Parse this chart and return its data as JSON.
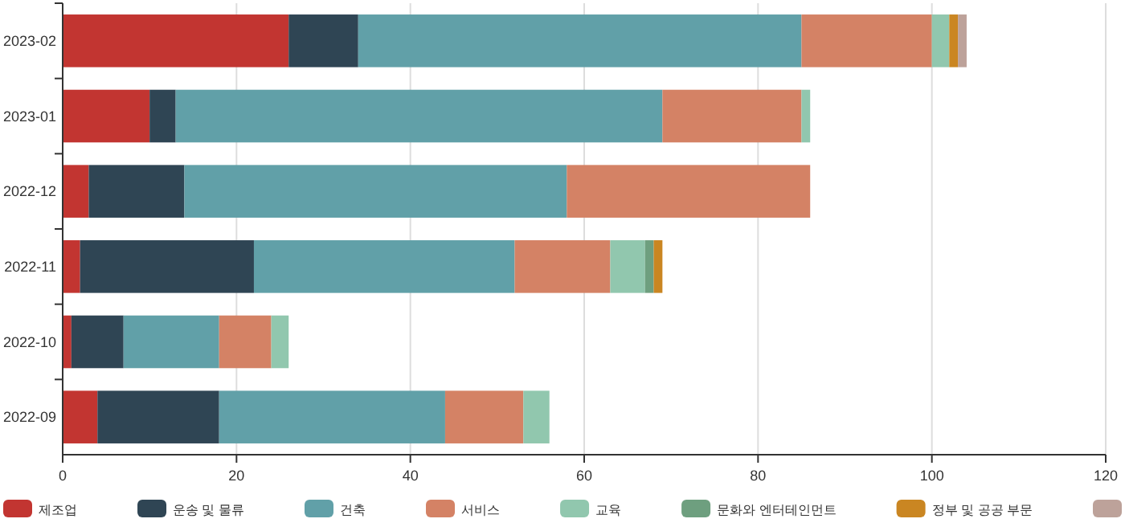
{
  "chart_data": {
    "type": "bar",
    "orientation": "horizontal",
    "stacked": true,
    "categories": [
      "2023-02",
      "2023-01",
      "2022-12",
      "2022-11",
      "2022-10",
      "2022-09"
    ],
    "series": [
      {
        "name": "제조업",
        "color": "#c23531",
        "values": [
          26,
          10,
          3,
          2,
          1,
          4
        ]
      },
      {
        "name": "운송 및 물류",
        "color": "#2f4554",
        "values": [
          8,
          3,
          11,
          20,
          6,
          14
        ]
      },
      {
        "name": "건축",
        "color": "#61a0a8",
        "values": [
          51,
          56,
          44,
          30,
          11,
          26
        ]
      },
      {
        "name": "서비스",
        "color": "#d48265",
        "values": [
          15,
          16,
          28,
          11,
          6,
          9
        ]
      },
      {
        "name": "교육",
        "color": "#91c7ae",
        "values": [
          2,
          1,
          null,
          4,
          2,
          3
        ]
      },
      {
        "name": "문화와 엔터테인먼트",
        "color": "#6e9f7f",
        "values": [
          null,
          null,
          null,
          1,
          null,
          null
        ]
      },
      {
        "name": "정부 및 공공 부문",
        "color": "#ca8622",
        "values": [
          1,
          null,
          null,
          1,
          null,
          null
        ]
      },
      {
        "color": "#bda29a",
        "values": [
          1,
          null,
          null,
          null,
          null,
          null
        ]
      }
    ],
    "xlim": [
      0,
      120
    ],
    "xticks": [
      0,
      20,
      40,
      60,
      80,
      100,
      120
    ],
    "grid": "x",
    "legend": "bottom"
  }
}
